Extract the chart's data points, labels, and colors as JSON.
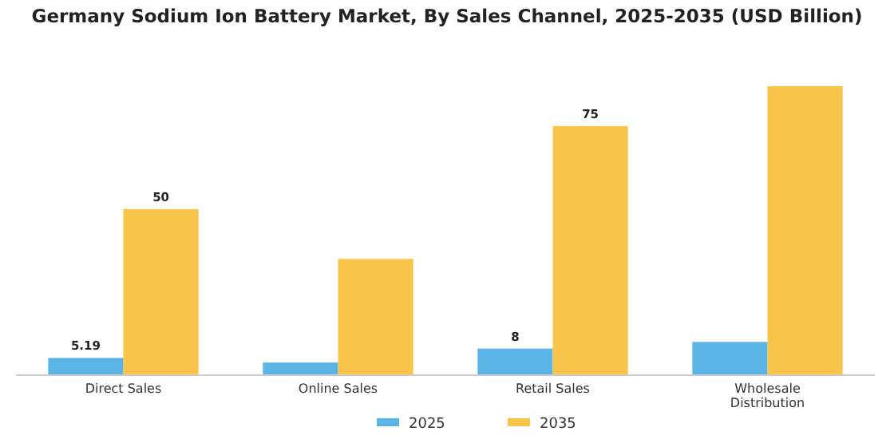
{
  "chart_data": {
    "type": "bar",
    "title": "Germany Sodium Ion Battery Market, By Sales Channel, 2025-2035 (USD Billion)",
    "categories": [
      "Direct Sales",
      "Online Sales",
      "Retail Sales",
      "Wholesale Distribution"
    ],
    "series": [
      {
        "name": "2025",
        "color": "#5ab4e5",
        "values": [
          5.19,
          3.8,
          8,
          10
        ],
        "value_labels": [
          "5.19",
          null,
          "8",
          null
        ]
      },
      {
        "name": "2035",
        "color": "#f8c44a",
        "values": [
          50,
          35,
          75,
          87
        ],
        "value_labels": [
          "50",
          null,
          "75",
          null
        ]
      }
    ],
    "legend": "bottom",
    "grid": false
  }
}
